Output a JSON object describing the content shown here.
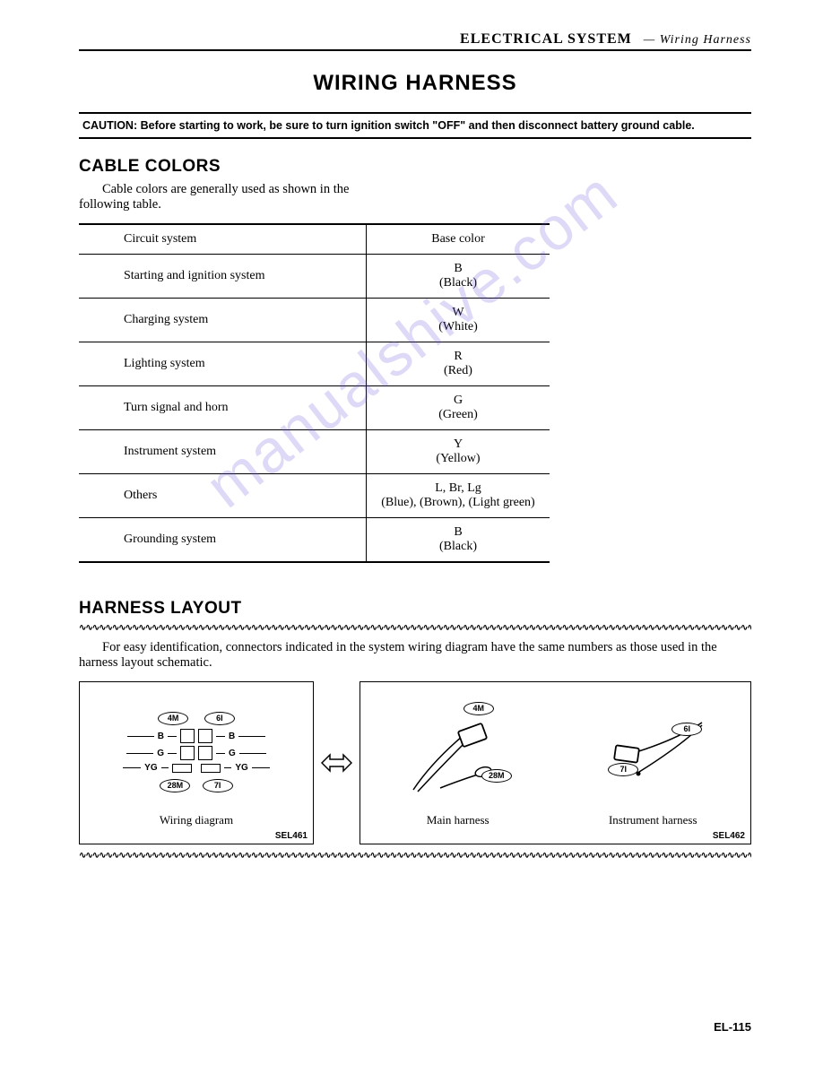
{
  "header": {
    "section": "ELECTRICAL SYSTEM",
    "subsection": "— Wiring Harness"
  },
  "title": "WIRING HARNESS",
  "caution": {
    "label": "CAUTION:",
    "text": "Before starting to work, be sure to turn ignition switch \"OFF\" and then disconnect battery ground cable."
  },
  "sections": {
    "cable_colors": {
      "heading": "CABLE COLORS",
      "intro": "Cable colors are generally used as shown in the following table.",
      "table": {
        "columns": [
          "Circuit system",
          "Base color"
        ],
        "rows": [
          {
            "system": "Starting and ignition system",
            "code": "B",
            "name": "(Black)"
          },
          {
            "system": "Charging system",
            "code": "W",
            "name": "(White)"
          },
          {
            "system": "Lighting system",
            "code": "R",
            "name": "(Red)"
          },
          {
            "system": "Turn signal and horn",
            "code": "G",
            "name": "(Green)"
          },
          {
            "system": "Instrument system",
            "code": "Y",
            "name": "(Yellow)"
          },
          {
            "system": "Others",
            "code": "L, Br, Lg",
            "name": "(Blue), (Brown), (Light green)"
          },
          {
            "system": "Grounding system",
            "code": "B",
            "name": "(Black)"
          }
        ]
      }
    },
    "harness_layout": {
      "heading": "HARNESS LAYOUT",
      "intro": "For easy identification, connectors indicated in the system wiring diagram have the same numbers as those used in the harness layout schematic.",
      "figures": {
        "fig1": {
          "caption": "Wiring diagram",
          "ref": "SEL461",
          "connector_labels": [
            "4M",
            "6I",
            "28M",
            "7I"
          ],
          "wire_labels": [
            "B",
            "G",
            "YG"
          ]
        },
        "fig2": {
          "left": {
            "caption": "Main harness",
            "labels": [
              "4M",
              "28M"
            ]
          },
          "right": {
            "caption": "Instrument harness",
            "labels": [
              "6I",
              "7I"
            ]
          },
          "ref": "SEL462"
        }
      }
    }
  },
  "page_number": "EL-115",
  "watermark": "manualshive.com"
}
